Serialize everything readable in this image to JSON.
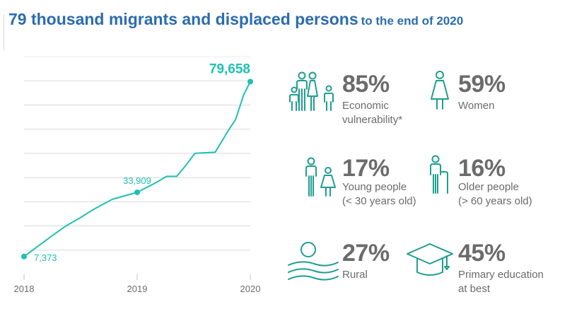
{
  "title": {
    "main": "79 thousand migrants and displaced persons",
    "sub": "to the end of 2020"
  },
  "colors": {
    "accent": "#1fc0b4",
    "title": "#2b6cb0",
    "text": "#6b6b6b",
    "icon": "#1f9e8f",
    "grid": "#d9d9d9"
  },
  "chart_data": {
    "type": "line",
    "title": "",
    "xlabel": "",
    "ylabel": "",
    "x_ticks": [
      "2018",
      "2019",
      "2020"
    ],
    "xlim": [
      2018,
      2020
    ],
    "ylim": [
      0,
      90000
    ],
    "grid": true,
    "series": [
      {
        "values": [
          [
            2018.0,
            7373
          ],
          [
            2018.12,
            11500
          ],
          [
            2018.25,
            16000
          ],
          [
            2018.37,
            20000
          ],
          [
            2018.5,
            23500
          ],
          [
            2018.62,
            27000
          ],
          [
            2018.78,
            31000
          ],
          [
            2019.0,
            33909
          ],
          [
            2019.17,
            38000
          ],
          [
            2019.26,
            40500
          ],
          [
            2019.35,
            40500
          ],
          [
            2019.43,
            45000
          ],
          [
            2019.51,
            50000
          ],
          [
            2019.69,
            50500
          ],
          [
            2019.8,
            59000
          ],
          [
            2019.87,
            64000
          ],
          [
            2019.94,
            74000
          ],
          [
            2020.0,
            79658
          ]
        ]
      }
    ],
    "annotations": [
      {
        "x": 2018.0,
        "y": 7373,
        "label": "7,373"
      },
      {
        "x": 2019.0,
        "y": 33909,
        "label": "33,909"
      },
      {
        "x": 2020.0,
        "y": 79658,
        "label": "79,658"
      }
    ]
  },
  "stats": [
    {
      "icon": "family-icon",
      "value": "85%",
      "label_lines": [
        "Economic",
        "vulnerability*"
      ]
    },
    {
      "icon": "woman-icon",
      "value": "59%",
      "label_lines": [
        "Women"
      ]
    },
    {
      "icon": "young-people-icon",
      "value": "17%",
      "label_lines": [
        "Young people",
        "(< 30 years old)"
      ]
    },
    {
      "icon": "older-person-icon",
      "value": "16%",
      "label_lines": [
        "Older people",
        "(> 60 years old)"
      ]
    },
    {
      "icon": "rural-landscape-icon",
      "value": "27%",
      "label_lines": [
        "Rural"
      ]
    },
    {
      "icon": "graduation-cap-icon",
      "value": "45%",
      "label_lines": [
        "Primary education",
        "at best"
      ]
    }
  ]
}
